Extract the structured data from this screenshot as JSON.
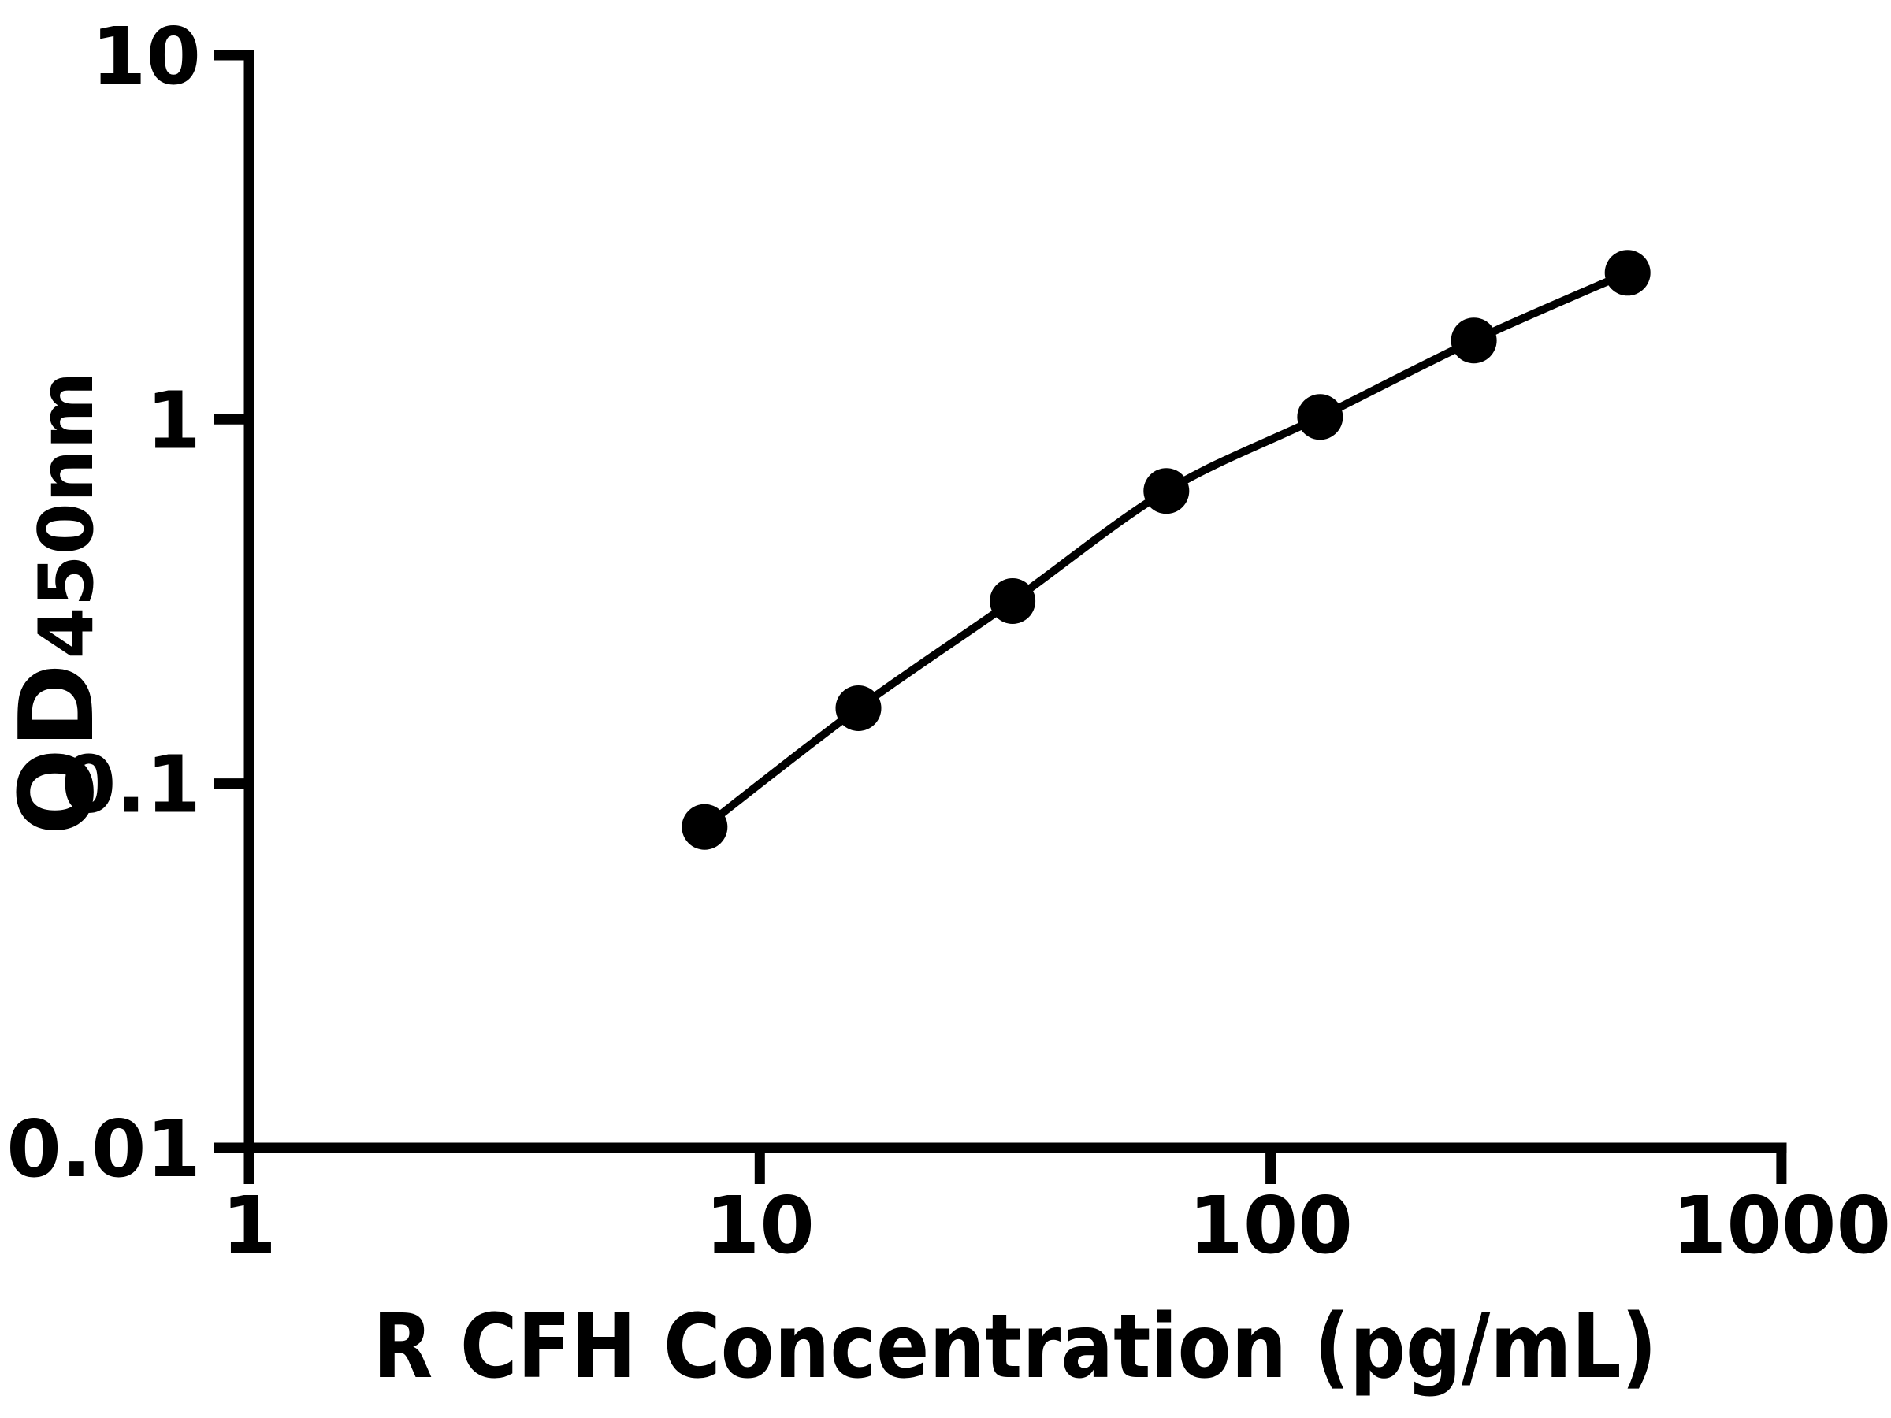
{
  "figure": {
    "background": "#ffffff",
    "ink_color": "#000000"
  },
  "chart_data": {
    "type": "scatter",
    "curve_style": "smooth fitted standard curve through points",
    "title": "",
    "xlabel": "R CFH Concentration (pg/mL)",
    "ylabel_main": "OD",
    "ylabel_subscript": "450nm",
    "x_scale": "log10",
    "y_scale": "log10",
    "xlim": [
      1,
      1000
    ],
    "ylim": [
      0.01,
      10
    ],
    "x_ticks": [
      1,
      10,
      100,
      1000
    ],
    "x_tick_labels": [
      "1",
      "10",
      "100",
      "1000"
    ],
    "y_ticks": [
      10,
      1,
      0.1,
      0.01
    ],
    "y_tick_labels": [
      "10",
      "1",
      "0.1",
      "0.01"
    ],
    "grid": false,
    "legend": false,
    "series": [
      {
        "name": "standard-curve",
        "marker": "filled-circle",
        "color": "#000000",
        "points": [
          {
            "x": 7.8,
            "y": 0.076
          },
          {
            "x": 15.6,
            "y": 0.161
          },
          {
            "x": 31.25,
            "y": 0.317
          },
          {
            "x": 62.5,
            "y": 0.636
          },
          {
            "x": 125,
            "y": 1.015
          },
          {
            "x": 250,
            "y": 1.646
          },
          {
            "x": 500,
            "y": 2.525
          }
        ]
      }
    ]
  }
}
